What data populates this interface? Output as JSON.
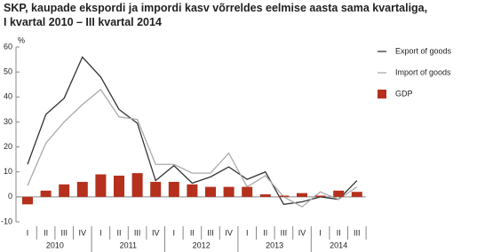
{
  "chart_data": {
    "type": "bar-line",
    "title": [
      "SKP, kaupade ekspordi ja impordi kasv võrreldes eelmise aasta sama kvartaliga,",
      "I kvartal 2010 – III kvartal 2014"
    ],
    "y_label": "%",
    "categories": [
      "I",
      "II",
      "III",
      "IV",
      "I",
      "II",
      "III",
      "IV",
      "I",
      "II",
      "III",
      "IV",
      "I",
      "II",
      "III",
      "IV",
      "I",
      "II",
      "III"
    ],
    "year_labels": [
      "2010",
      "2011",
      "2012",
      "2013",
      "2014"
    ],
    "series": [
      {
        "name": "Export of goods",
        "kind": "line",
        "color": "#333333",
        "values": [
          13,
          33,
          39.5,
          56,
          48,
          35,
          29.5,
          6.5,
          12.5,
          5.5,
          8,
          12,
          7,
          10,
          -3,
          -2,
          0,
          -1,
          6.5
        ]
      },
      {
        "name": "Import of goods",
        "kind": "line",
        "color": "#aaaaaa",
        "values": [
          4.5,
          21.5,
          30,
          37,
          43,
          32,
          31,
          13,
          13,
          9.5,
          9.5,
          17.5,
          4,
          8.5,
          0,
          -4,
          2,
          -1,
          4
        ]
      },
      {
        "name": "GDP",
        "kind": "bar",
        "color": "#b5301d",
        "values": [
          -3,
          2.5,
          5,
          6,
          9,
          8.5,
          9.5,
          6,
          6,
          5,
          4,
          4,
          4,
          1,
          0.5,
          1.5,
          0.5,
          2.5,
          2
        ]
      }
    ],
    "ylim": [
      -10,
      60
    ],
    "yticks": [
      -10,
      0,
      10,
      20,
      30,
      40,
      50,
      60
    ]
  }
}
